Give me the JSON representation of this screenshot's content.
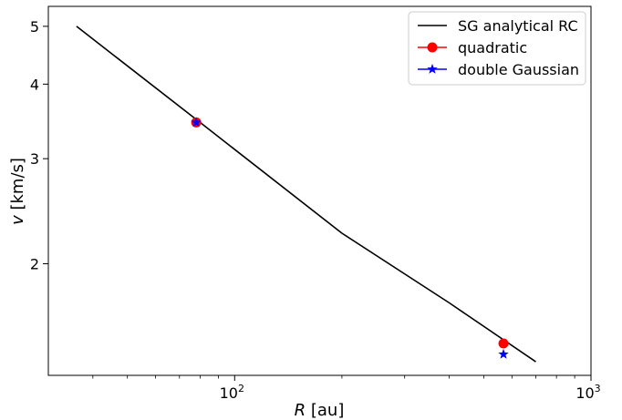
{
  "chart_data": {
    "type": "line",
    "title": "",
    "xlabel_var": "R",
    "xlabel_unit": " [au]",
    "ylabel_var": "v",
    "ylabel_unit": " [km/s]",
    "xscale": "log",
    "yscale": "log",
    "xlim": [
      30,
      1000
    ],
    "ylim": [
      1.3,
      5.4
    ],
    "x_ticks": [
      {
        "value": 100,
        "label_base": "10",
        "label_exp": "2"
      },
      {
        "value": 1000,
        "label_base": "10",
        "label_exp": "3"
      }
    ],
    "y_ticks": [
      {
        "value": 2,
        "label": "2"
      },
      {
        "value": 3,
        "label": "3"
      },
      {
        "value": 4,
        "label": "4"
      },
      {
        "value": 5,
        "label": "5"
      }
    ],
    "grid": false,
    "legend_position": "top-right",
    "series": [
      {
        "name": "SG analytical RC",
        "kind": "line",
        "color": "#000000",
        "marker": "none",
        "points": [
          [
            36,
            5.0
          ],
          [
            80,
            3.45
          ],
          [
            200,
            2.25
          ],
          [
            400,
            1.72
          ],
          [
            700,
            1.37
          ]
        ]
      },
      {
        "name": "quadratic",
        "kind": "marker",
        "color": "#ff0000",
        "marker": "circle",
        "points": [
          [
            78,
            3.45
          ],
          [
            568,
            1.47
          ]
        ]
      },
      {
        "name": "double Gaussian",
        "kind": "marker",
        "color": "#0000ff",
        "marker": "star",
        "points": [
          [
            78,
            3.45
          ],
          [
            568,
            1.41
          ]
        ]
      }
    ]
  }
}
